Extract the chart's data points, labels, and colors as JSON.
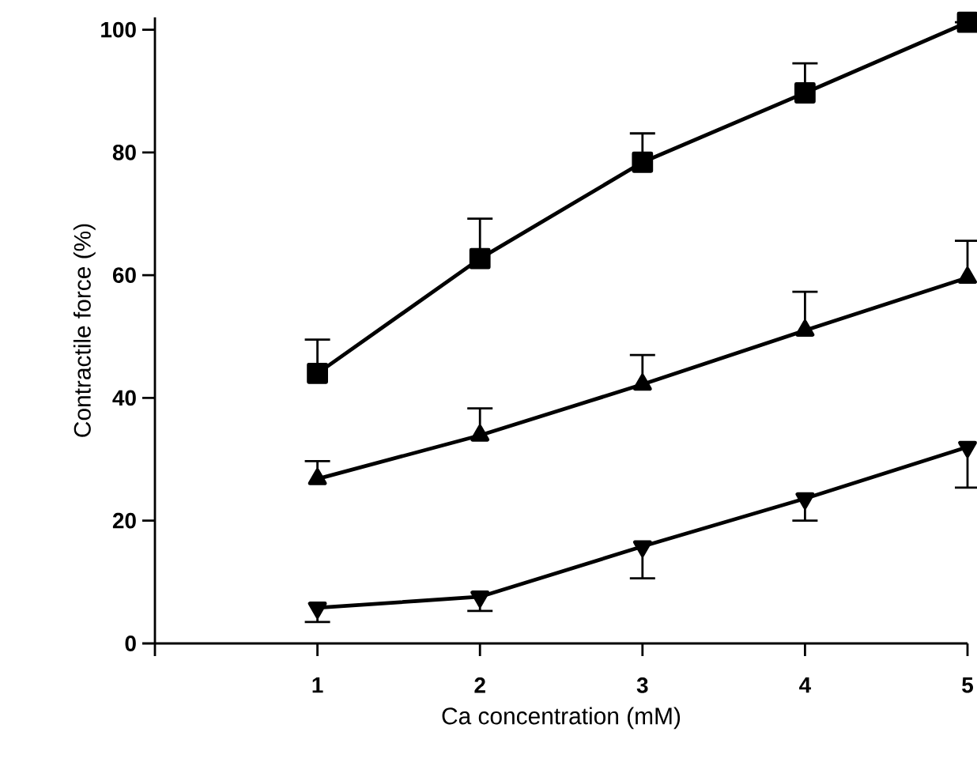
{
  "chart_data": {
    "type": "line",
    "xlabel": "Ca concentration (mM)",
    "ylabel": "Contractile force (%)",
    "x": [
      1,
      2,
      3,
      4,
      5
    ],
    "xlim": [
      0,
      5
    ],
    "xticks": [
      {
        "value": 0,
        "label": null
      },
      1,
      2,
      3,
      4,
      5
    ],
    "ylim": [
      0,
      102
    ],
    "yticks": [
      0,
      20,
      40,
      60,
      80,
      100
    ],
    "line_style": "solid",
    "series": [
      {
        "color": "#000000",
        "marker": "square",
        "values": [
          44,
          62.7,
          78.4,
          89.7,
          101.2
        ],
        "errors": [
          [
            44,
            49.5
          ],
          [
            62.7,
            69.2
          ],
          [
            78.4,
            83.1
          ],
          [
            89.7,
            94.5
          ],
          null
        ]
      },
      {
        "color": "#000000",
        "marker": "triangle",
        "values": [
          26.8,
          33.9,
          42.2,
          51,
          59.6
        ],
        "errors": [
          [
            26.8,
            29.7
          ],
          [
            33.9,
            38.3
          ],
          [
            42.2,
            47
          ],
          [
            51,
            57.3
          ],
          [
            59.6,
            65.6
          ]
        ]
      },
      {
        "color": "#000000",
        "marker": "triangle-down",
        "values": [
          5.8,
          7.6,
          15.8,
          23.6,
          32
        ],
        "errors": [
          [
            3.5,
            5.8
          ],
          [
            5.3,
            7.6
          ],
          [
            10.6,
            15.8
          ],
          [
            20,
            23.6
          ],
          [
            25.4,
            32
          ]
        ]
      }
    ]
  }
}
